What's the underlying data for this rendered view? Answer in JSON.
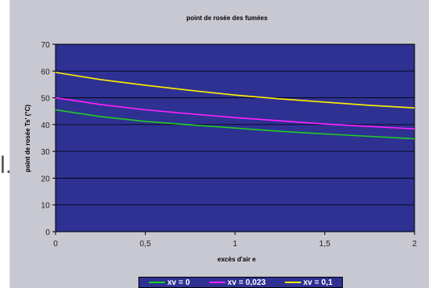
{
  "side_glyph": "l.",
  "chart_data": {
    "type": "line",
    "title": "point de rosée des fumées",
    "xlabel": "excès d'air e",
    "ylabel": "point de rosée Ts' (°C)",
    "xlim": [
      0,
      2
    ],
    "ylim": [
      0,
      70
    ],
    "x_ticks": [
      "0",
      "0,5",
      "1",
      "1,5",
      "2"
    ],
    "y_ticks": [
      "0",
      "10",
      "20",
      "30",
      "40",
      "50",
      "60",
      "70"
    ],
    "plot_background": "#2e3192",
    "grid": "horizontal",
    "legend_position": "bottom",
    "series": [
      {
        "name": "xv = 0",
        "color": "#22cc22",
        "x": [
          0,
          0.25,
          0.5,
          0.75,
          1.0,
          1.25,
          1.5,
          1.75,
          2.0
        ],
        "y": [
          45.5,
          43.0,
          41.2,
          39.9,
          38.7,
          37.5,
          36.5,
          35.6,
          34.7
        ]
      },
      {
        "name": "xv = 0,023",
        "color": "#ff22ff",
        "x": [
          0,
          0.25,
          0.5,
          0.75,
          1.0,
          1.25,
          1.5,
          1.75,
          2.0
        ],
        "y": [
          50.0,
          47.5,
          45.5,
          44.0,
          42.6,
          41.4,
          40.2,
          39.3,
          38.4
        ]
      },
      {
        "name": "xv = 0,1",
        "color": "#ffee00",
        "x": [
          0,
          0.25,
          0.5,
          0.75,
          1.0,
          1.25,
          1.5,
          1.75,
          2.0
        ],
        "y": [
          59.5,
          56.8,
          54.7,
          52.8,
          51.0,
          49.6,
          48.4,
          47.2,
          46.2
        ]
      }
    ]
  }
}
